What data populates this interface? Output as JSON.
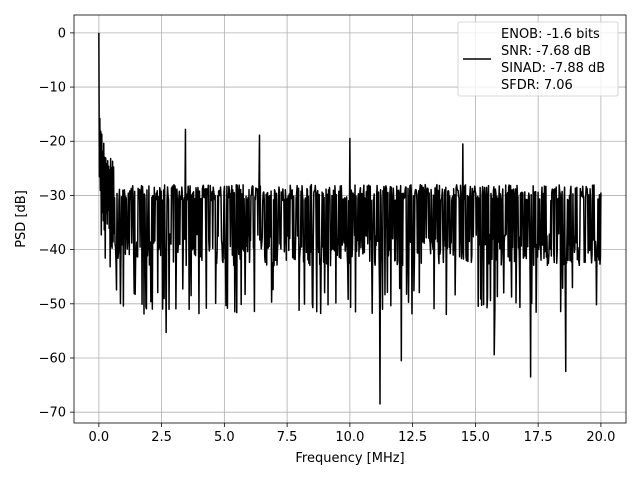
{
  "chart_data": {
    "type": "line",
    "title": "",
    "xlabel": "Frequency [MHz]",
    "ylabel": "PSD [dB]",
    "xlim": [
      -0.99,
      21.0
    ],
    "ylim": [
      -72.0,
      3.3
    ],
    "grid": true,
    "legend_position": "top-right",
    "x_ticks": [
      0.0,
      2.5,
      5.0,
      7.5,
      10.0,
      12.5,
      15.0,
      17.5,
      20.0
    ],
    "x_tick_labels": [
      "0.0",
      "2.5",
      "5.0",
      "7.5",
      "10.0",
      "12.5",
      "15.0",
      "17.5",
      "20.0"
    ],
    "y_ticks": [
      0,
      -10,
      -20,
      -30,
      -40,
      -50,
      -60,
      -70
    ],
    "y_tick_labels": [
      "0",
      "−10",
      "−20",
      "−30",
      "−40",
      "−50",
      "−60",
      "−70"
    ],
    "legend": {
      "entries": [
        "ENOB: -1.6 bits",
        "SNR: -7.68 dB",
        "SINAD: -7.88 dB",
        "SFDR: 7.06"
      ]
    },
    "series": [
      {
        "color": "#000000",
        "description_of_shape": "noise-like power spectral density trace from 0 to 20 MHz",
        "x_range": [
          0.0,
          20.0
        ],
        "sample_count": 1024,
        "peak": {
          "x": 0.0,
          "y": 0.0
        },
        "low_freq_rolloff": [
          [
            0.0,
            0.0
          ],
          [
            0.03,
            -13.0
          ],
          [
            0.1,
            -18.0
          ],
          [
            0.3,
            -22.0
          ],
          [
            0.6,
            -24.0
          ]
        ],
        "upper_envelope_typical": -27.0,
        "lower_envelope_typical": -42.0,
        "notable_minima": [
          {
            "x": 2.68,
            "y": -55.3
          },
          {
            "x": 11.2,
            "y": -68.5
          },
          {
            "x": 12.05,
            "y": -60.5
          },
          {
            "x": 15.75,
            "y": -59.4
          },
          {
            "x": 17.2,
            "y": -63.5
          },
          {
            "x": 18.6,
            "y": -62.5
          }
        ],
        "notable_maxima": [
          {
            "x": 3.45,
            "y": -17.8
          },
          {
            "x": 6.4,
            "y": -18.9
          },
          {
            "x": 10.0,
            "y": -19.5
          },
          {
            "x": 14.5,
            "y": -20.5
          }
        ]
      }
    ]
  }
}
